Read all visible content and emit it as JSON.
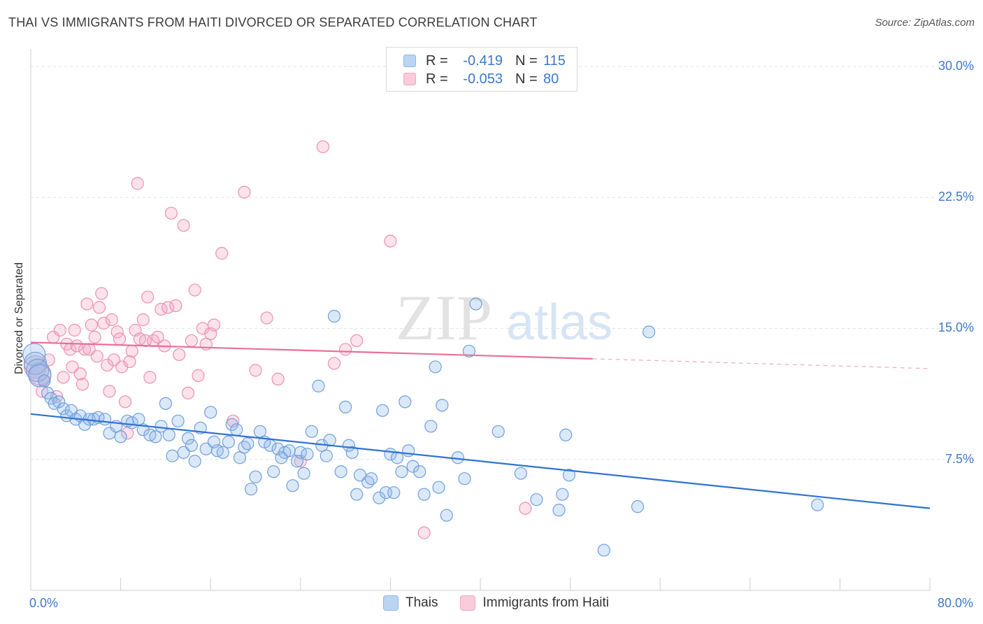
{
  "title": "THAI VS IMMIGRANTS FROM HAITI DIVORCED OR SEPARATED CORRELATION CHART",
  "source": "Source: ZipAtlas.com",
  "watermark": {
    "part1": "ZIP",
    "part2": "atlas"
  },
  "legend": {
    "rows": [
      {
        "r_label": "R =",
        "r_value": "-0.419",
        "n_label": "N =",
        "n_value": "115"
      },
      {
        "r_label": "R =",
        "r_value": "-0.053",
        "n_label": "N =",
        "n_value": "80"
      }
    ]
  },
  "bottom_legend": [
    "Thais",
    "Immigrants from Haiti"
  ],
  "chart_data": {
    "type": "scatter",
    "ylabel": "Divorced or Separated",
    "xlim": [
      0,
      80
    ],
    "ylim": [
      0,
      31
    ],
    "x_tick_labels": [
      {
        "value": 0,
        "label": "0.0%"
      },
      {
        "value": 80,
        "label": "80.0%"
      }
    ],
    "y_tick_labels": [
      {
        "value": 7.5,
        "label": "7.5%"
      },
      {
        "value": 15,
        "label": "15.0%"
      },
      {
        "value": 22.5,
        "label": "22.5%"
      },
      {
        "value": 30,
        "label": "30.0%"
      }
    ],
    "grid": "horizontal dashed",
    "colors": {
      "thais": "#8fb8ea",
      "thais_line": "#2f72d2",
      "haiti": "#f4a6c0",
      "haiti_line": "#e8709a",
      "tick_text": "#3e78c9"
    },
    "series": [
      {
        "name": "Thais",
        "color": "#8fb8ea",
        "trend": {
          "x": [
            0,
            80
          ],
          "y": [
            10.1,
            4.7
          ],
          "dashed_from": null
        },
        "points": [
          [
            0.3,
            13.5
          ],
          [
            0.4,
            13.0
          ],
          [
            0.6,
            12.6
          ],
          [
            0.8,
            12.3
          ],
          [
            1.2,
            12.0
          ],
          [
            1.5,
            11.3
          ],
          [
            1.8,
            11.0
          ],
          [
            2.1,
            10.7
          ],
          [
            2.5,
            10.8
          ],
          [
            2.9,
            10.4
          ],
          [
            3.2,
            10.0
          ],
          [
            3.6,
            10.3
          ],
          [
            4.0,
            9.8
          ],
          [
            4.4,
            10.0
          ],
          [
            4.8,
            9.5
          ],
          [
            5.2,
            9.8
          ],
          [
            5.6,
            9.8
          ],
          [
            6.0,
            9.9
          ],
          [
            6.6,
            9.8
          ],
          [
            7.0,
            9.0
          ],
          [
            7.6,
            9.4
          ],
          [
            8.0,
            8.8
          ],
          [
            8.6,
            9.7
          ],
          [
            9.0,
            9.6
          ],
          [
            9.6,
            9.8
          ],
          [
            10.0,
            9.2
          ],
          [
            10.6,
            8.9
          ],
          [
            11.1,
            8.8
          ],
          [
            11.6,
            9.4
          ],
          [
            12.0,
            10.7
          ],
          [
            12.3,
            8.9
          ],
          [
            12.6,
            7.7
          ],
          [
            13.1,
            9.7
          ],
          [
            13.6,
            7.9
          ],
          [
            14.0,
            8.7
          ],
          [
            14.3,
            8.3
          ],
          [
            14.6,
            7.4
          ],
          [
            15.1,
            9.3
          ],
          [
            15.6,
            8.1
          ],
          [
            16.0,
            10.2
          ],
          [
            16.3,
            8.5
          ],
          [
            16.6,
            8.0
          ],
          [
            17.1,
            7.9
          ],
          [
            17.6,
            8.5
          ],
          [
            17.9,
            9.5
          ],
          [
            18.3,
            9.2
          ],
          [
            18.6,
            7.6
          ],
          [
            19.0,
            8.2
          ],
          [
            19.3,
            8.4
          ],
          [
            19.6,
            5.8
          ],
          [
            20.0,
            6.5
          ],
          [
            20.4,
            9.1
          ],
          [
            20.8,
            8.5
          ],
          [
            21.3,
            8.3
          ],
          [
            21.6,
            6.8
          ],
          [
            22.0,
            8.1
          ],
          [
            22.3,
            7.6
          ],
          [
            22.6,
            7.9
          ],
          [
            23.0,
            8.0
          ],
          [
            23.3,
            6.0
          ],
          [
            23.7,
            7.4
          ],
          [
            24.0,
            7.9
          ],
          [
            24.3,
            6.7
          ],
          [
            24.6,
            7.8
          ],
          [
            25.0,
            9.1
          ],
          [
            25.6,
            11.7
          ],
          [
            25.9,
            8.3
          ],
          [
            26.3,
            7.7
          ],
          [
            26.6,
            8.6
          ],
          [
            27.0,
            15.7
          ],
          [
            27.6,
            6.8
          ],
          [
            28.0,
            10.5
          ],
          [
            28.3,
            8.3
          ],
          [
            28.6,
            7.9
          ],
          [
            29.0,
            5.5
          ],
          [
            29.3,
            6.6
          ],
          [
            30.0,
            6.2
          ],
          [
            30.3,
            6.4
          ],
          [
            31.0,
            5.3
          ],
          [
            31.3,
            10.3
          ],
          [
            31.6,
            5.6
          ],
          [
            32.0,
            7.8
          ],
          [
            32.3,
            5.6
          ],
          [
            32.6,
            7.6
          ],
          [
            33.0,
            6.8
          ],
          [
            33.3,
            10.8
          ],
          [
            33.6,
            8.0
          ],
          [
            34.0,
            7.1
          ],
          [
            34.6,
            6.8
          ],
          [
            35.0,
            5.5
          ],
          [
            35.6,
            9.4
          ],
          [
            36.0,
            12.8
          ],
          [
            36.3,
            5.9
          ],
          [
            36.6,
            10.6
          ],
          [
            37.0,
            4.3
          ],
          [
            38.0,
            7.6
          ],
          [
            38.6,
            6.4
          ],
          [
            39.0,
            13.7
          ],
          [
            39.6,
            16.4
          ],
          [
            41.6,
            9.1
          ],
          [
            43.6,
            6.7
          ],
          [
            45.0,
            5.2
          ],
          [
            47.0,
            4.6
          ],
          [
            47.3,
            5.5
          ],
          [
            47.6,
            8.9
          ],
          [
            47.9,
            6.6
          ],
          [
            51.0,
            2.3
          ],
          [
            54.0,
            4.8
          ],
          [
            55.0,
            14.8
          ],
          [
            70.0,
            4.9
          ]
        ]
      },
      {
        "name": "Immigrants from Haiti",
        "color": "#f4a6c0",
        "trend": {
          "x": [
            0,
            80
          ],
          "y": [
            14.2,
            12.7
          ],
          "dashed_from": 50
        },
        "points": [
          [
            0.4,
            12.8
          ],
          [
            0.8,
            12.4
          ],
          [
            1.0,
            11.4
          ],
          [
            1.2,
            12.0
          ],
          [
            1.6,
            13.2
          ],
          [
            2.0,
            14.5
          ],
          [
            2.3,
            11.1
          ],
          [
            2.6,
            14.9
          ],
          [
            2.9,
            12.2
          ],
          [
            3.2,
            14.1
          ],
          [
            3.5,
            13.8
          ],
          [
            3.7,
            12.8
          ],
          [
            3.9,
            14.9
          ],
          [
            4.1,
            14.0
          ],
          [
            4.4,
            12.4
          ],
          [
            4.6,
            11.8
          ],
          [
            4.8,
            13.8
          ],
          [
            5.0,
            16.4
          ],
          [
            5.2,
            13.8
          ],
          [
            5.4,
            15.2
          ],
          [
            5.7,
            14.5
          ],
          [
            5.9,
            13.4
          ],
          [
            6.1,
            16.2
          ],
          [
            6.3,
            17.0
          ],
          [
            6.5,
            15.3
          ],
          [
            6.8,
            12.9
          ],
          [
            7.0,
            11.4
          ],
          [
            7.2,
            15.5
          ],
          [
            7.4,
            13.2
          ],
          [
            7.7,
            14.8
          ],
          [
            7.9,
            14.4
          ],
          [
            8.1,
            12.8
          ],
          [
            8.4,
            10.8
          ],
          [
            8.6,
            9.0
          ],
          [
            8.8,
            13.1
          ],
          [
            9.0,
            13.7
          ],
          [
            9.3,
            14.9
          ],
          [
            9.5,
            23.3
          ],
          [
            9.7,
            14.4
          ],
          [
            10.0,
            15.5
          ],
          [
            10.2,
            14.3
          ],
          [
            10.4,
            16.8
          ],
          [
            10.6,
            12.2
          ],
          [
            10.9,
            14.3
          ],
          [
            11.3,
            14.5
          ],
          [
            11.6,
            16.1
          ],
          [
            11.9,
            14.0
          ],
          [
            12.2,
            16.2
          ],
          [
            12.5,
            21.6
          ],
          [
            12.9,
            16.3
          ],
          [
            13.2,
            13.5
          ],
          [
            13.6,
            20.9
          ],
          [
            14.0,
            11.3
          ],
          [
            14.3,
            14.3
          ],
          [
            14.6,
            17.2
          ],
          [
            14.9,
            12.3
          ],
          [
            15.3,
            15.0
          ],
          [
            15.6,
            14.1
          ],
          [
            16.0,
            14.7
          ],
          [
            16.3,
            15.2
          ],
          [
            17.0,
            19.3
          ],
          [
            18.0,
            9.7
          ],
          [
            19.0,
            22.8
          ],
          [
            20.0,
            12.6
          ],
          [
            21.0,
            15.6
          ],
          [
            22.0,
            12.1
          ],
          [
            24.0,
            7.4
          ],
          [
            26.0,
            25.4
          ],
          [
            27.0,
            13.0
          ],
          [
            28.0,
            13.8
          ],
          [
            29.0,
            14.3
          ],
          [
            32.0,
            20.0
          ],
          [
            35.0,
            3.3
          ],
          [
            44.0,
            4.7
          ]
        ]
      }
    ]
  }
}
